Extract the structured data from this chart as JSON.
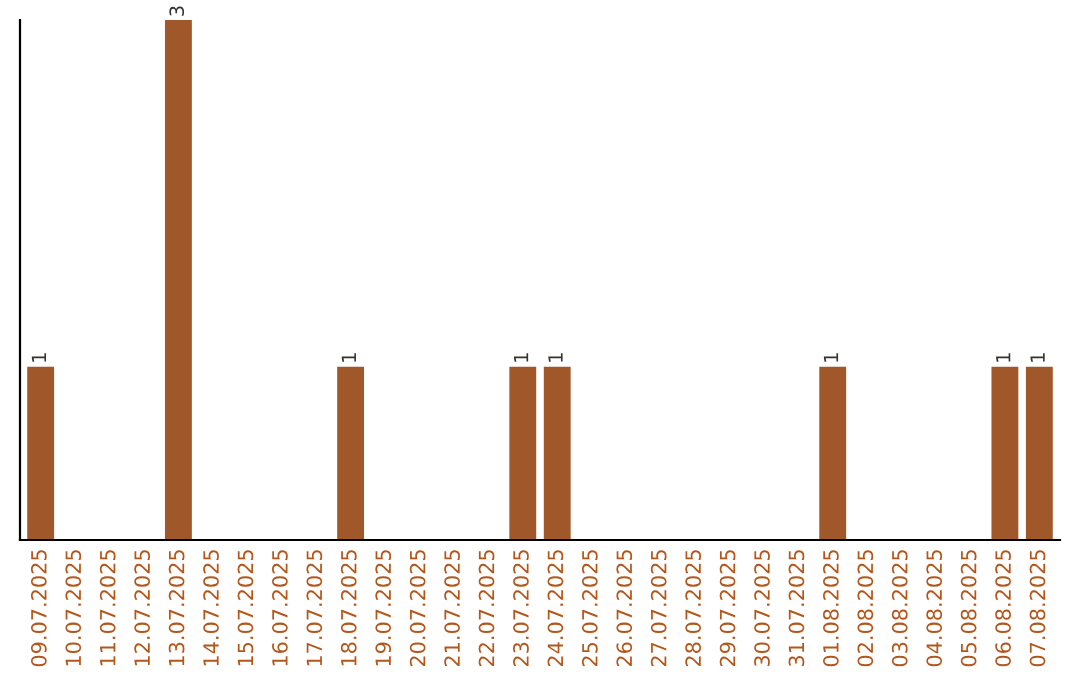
{
  "chart_data": {
    "type": "bar",
    "categories": [
      "09.07.2025",
      "10.07.2025",
      "11.07.2025",
      "12.07.2025",
      "13.07.2025",
      "14.07.2025",
      "15.07.2025",
      "16.07.2025",
      "17.07.2025",
      "18.07.2025",
      "19.07.2025",
      "20.07.2025",
      "21.07.2025",
      "22.07.2025",
      "23.07.2025",
      "24.07.2025",
      "25.07.2025",
      "26.07.2025",
      "27.07.2025",
      "28.07.2025",
      "29.07.2025",
      "30.07.2025",
      "31.07.2025",
      "01.08.2025",
      "02.08.2025",
      "03.08.2025",
      "04.08.2025",
      "05.08.2025",
      "06.08.2025",
      "07.08.2025"
    ],
    "values": [
      1,
      0,
      0,
      0,
      3,
      0,
      0,
      0,
      0,
      1,
      0,
      0,
      0,
      0,
      1,
      1,
      0,
      0,
      0,
      0,
      0,
      0,
      0,
      1,
      0,
      0,
      0,
      0,
      1,
      1
    ],
    "value_labels": [
      "1",
      null,
      null,
      null,
      "3",
      null,
      null,
      null,
      null,
      "1",
      null,
      null,
      null,
      null,
      "1",
      "1",
      null,
      null,
      null,
      null,
      null,
      null,
      null,
      "1",
      null,
      null,
      null,
      null,
      "1",
      "1"
    ],
    "color": "#a0582a",
    "grid": false,
    "legend": false
  }
}
